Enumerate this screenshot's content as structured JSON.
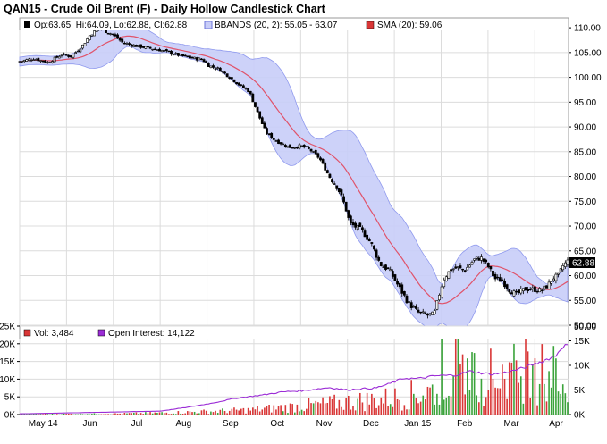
{
  "title": "QAN15 - Crude Oil Brent (F) - Daily Hollow Candlestick Chart",
  "colors": {
    "bands_fill": "#c8cdf8",
    "bands_line": "#8f99ee",
    "sma": "#e0536a",
    "candle": "#000000",
    "vol_up": "#3aa33a",
    "vol_down": "#d93636",
    "open_interest": "#9b2cd6",
    "last_price_bg": "#000000"
  },
  "chart_data": [
    {
      "type": "candlestick",
      "name": "price",
      "legend": {
        "ohlc": "Op:63.65, Hi:64.09, Lo:62.88, Cl:62.88",
        "bbands": "BBANDS (20, 2): 55.05 - 63.07",
        "sma": "SMA (20): 59.06"
      },
      "last_price": "62.88",
      "yticks": [
        50,
        55,
        60,
        65,
        70,
        75,
        80,
        85,
        90,
        95,
        100,
        105,
        110
      ],
      "ytick_labels": [
        "50.00",
        "55.00",
        "60.00",
        "65.00",
        "70.00",
        "75.00",
        "80.00",
        "85.00",
        "90.00",
        "95.00",
        "100.00",
        "105.00",
        "110.00"
      ],
      "ylim": [
        50,
        112
      ],
      "xticks": [
        "May 14",
        "Jun",
        "Jul",
        "Aug",
        "Sep",
        "Oct",
        "Nov",
        "Dec",
        "Jan 15",
        "Feb",
        "Mar",
        "Apr"
      ],
      "xtick_months": [
        0,
        1,
        2,
        3,
        4,
        5,
        6,
        7,
        8,
        9,
        10,
        11
      ],
      "xlim": [
        0,
        11.72
      ],
      "close_anchors": [
        [
          0,
          103.2
        ],
        [
          0.3,
          103.8
        ],
        [
          0.6,
          103.0
        ],
        [
          0.9,
          104.6
        ],
        [
          1.1,
          104.2
        ],
        [
          1.35,
          106.5
        ],
        [
          1.5,
          108.5
        ],
        [
          1.7,
          110.0
        ],
        [
          1.85,
          109.2
        ],
        [
          2.0,
          108.6
        ],
        [
          2.2,
          107.0
        ],
        [
          2.45,
          106.4
        ],
        [
          2.7,
          106.0
        ],
        [
          3.0,
          105.5
        ],
        [
          3.3,
          104.7
        ],
        [
          3.6,
          104.0
        ],
        [
          3.9,
          103.6
        ],
        [
          4.05,
          102.3
        ],
        [
          4.25,
          101.7
        ],
        [
          4.45,
          100.3
        ],
        [
          4.7,
          98.4
        ],
        [
          4.9,
          97.2
        ],
        [
          5.05,
          93.6
        ],
        [
          5.25,
          89.0
        ],
        [
          5.45,
          87.3
        ],
        [
          5.6,
          86.6
        ],
        [
          5.8,
          85.8
        ],
        [
          6.0,
          86.2
        ],
        [
          6.2,
          85.4
        ],
        [
          6.4,
          83.7
        ],
        [
          6.6,
          80.2
        ],
        [
          6.8,
          77.6
        ],
        [
          6.95,
          74.0
        ],
        [
          7.05,
          70.5
        ],
        [
          7.3,
          69.2
        ],
        [
          7.5,
          66.6
        ],
        [
          7.7,
          62.3
        ],
        [
          7.9,
          61.0
        ],
        [
          8.1,
          57.7
        ],
        [
          8.3,
          54.5
        ],
        [
          8.5,
          52.6
        ],
        [
          8.7,
          52.0
        ],
        [
          8.85,
          52.2
        ],
        [
          8.95,
          55.9
        ],
        [
          9.05,
          59.3
        ],
        [
          9.2,
          61.2
        ],
        [
          9.35,
          61.6
        ],
        [
          9.5,
          61.0
        ],
        [
          9.7,
          63.2
        ],
        [
          9.85,
          63.6
        ],
        [
          10.0,
          61.9
        ],
        [
          10.15,
          59.4
        ],
        [
          10.3,
          59.0
        ],
        [
          10.45,
          57.2
        ],
        [
          10.6,
          56.2
        ],
        [
          10.8,
          57.3
        ],
        [
          11.0,
          57.2
        ],
        [
          11.15,
          57.0
        ],
        [
          11.3,
          58.3
        ],
        [
          11.4,
          59.6
        ],
        [
          11.5,
          59.9
        ],
        [
          11.6,
          62.0
        ],
        [
          11.7,
          62.9
        ]
      ]
    },
    {
      "type": "bar",
      "name": "volume",
      "legend": {
        "vol": "Vol: 3,484",
        "oi": "Open Interest: 14,122"
      },
      "left_ticks": [
        0,
        5000,
        10000,
        15000,
        20000,
        25000
      ],
      "left_tick_labels": [
        "0K",
        "5K",
        "10K",
        "15K",
        "20K",
        "25K"
      ],
      "right_ticks": [
        0,
        5000,
        10000,
        15000
      ],
      "right_tick_labels": [
        "0K",
        "5K",
        "10K",
        "15K"
      ],
      "vol_ylim": [
        0,
        25000
      ],
      "oi_ylim": [
        0,
        18000
      ],
      "volume_anchors": [
        [
          0,
          150
        ],
        [
          2.0,
          250
        ],
        [
          3.0,
          500
        ],
        [
          4.0,
          900
        ],
        [
          5.0,
          1400
        ],
        [
          6.0,
          2500
        ],
        [
          7.0,
          3700
        ],
        [
          8.0,
          4900
        ],
        [
          8.8,
          7000
        ],
        [
          9.2,
          11000
        ],
        [
          9.7,
          12000
        ],
        [
          10.2,
          11500
        ],
        [
          10.7,
          12500
        ],
        [
          11.2,
          13000
        ],
        [
          11.55,
          12000
        ],
        [
          11.7,
          3484
        ]
      ],
      "oi_anchors": [
        [
          0,
          150
        ],
        [
          3.0,
          700
        ],
        [
          3.6,
          1500
        ],
        [
          4.1,
          2300
        ],
        [
          4.6,
          3300
        ],
        [
          5.2,
          4000
        ],
        [
          5.6,
          4600
        ],
        [
          6.1,
          4900
        ],
        [
          6.6,
          5500
        ],
        [
          7.0,
          5000
        ],
        [
          7.2,
          5200
        ],
        [
          7.6,
          5400
        ],
        [
          7.9,
          6300
        ],
        [
          8.2,
          7400
        ],
        [
          8.5,
          7300
        ],
        [
          8.9,
          7900
        ],
        [
          9.3,
          8000
        ],
        [
          9.6,
          8800
        ],
        [
          9.9,
          8400
        ],
        [
          10.1,
          8200
        ],
        [
          10.4,
          8600
        ],
        [
          10.8,
          9600
        ],
        [
          11.2,
          11000
        ],
        [
          11.45,
          12000
        ],
        [
          11.58,
          13800
        ],
        [
          11.7,
          14122
        ]
      ]
    }
  ]
}
